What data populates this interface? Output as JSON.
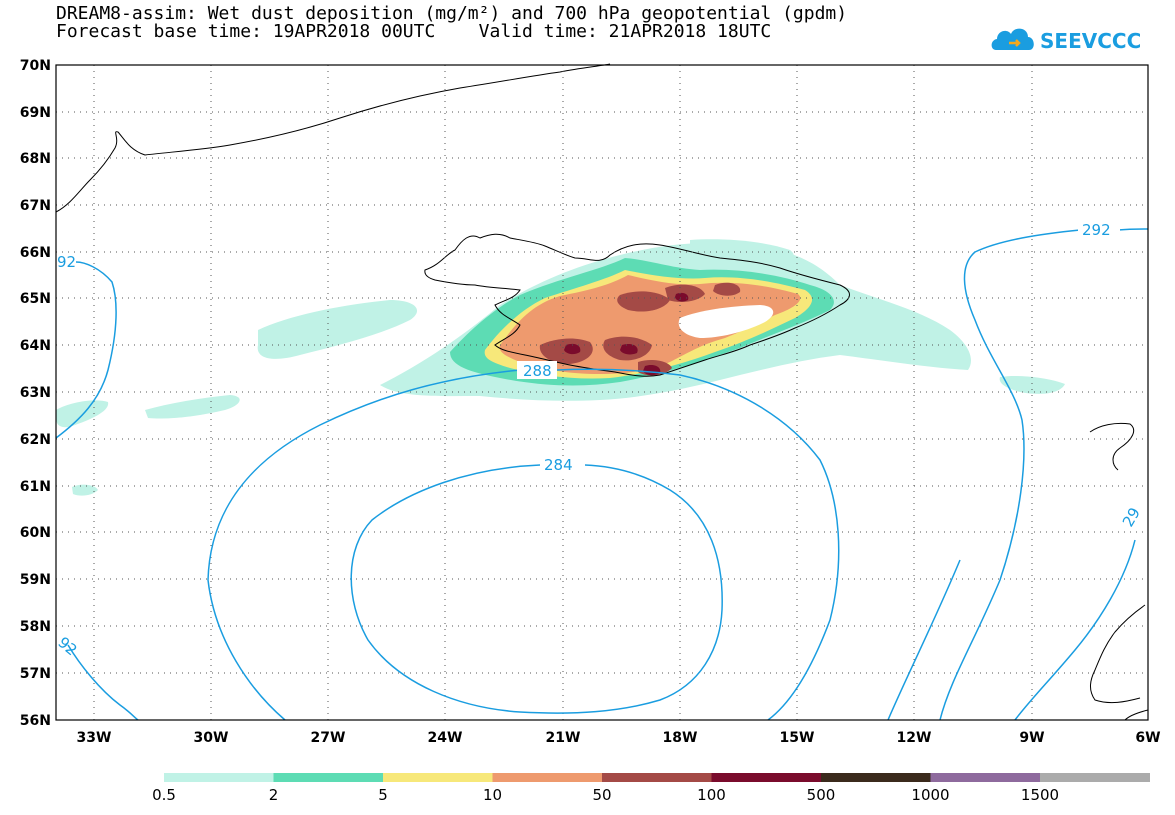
{
  "title_line1": "DREAM8-assim: Wet dust deposition (mg/m²) and 700 hPa geopotential (gpdm)",
  "title_line2": "Forecast base time: 19APR2018 00UTC    Valid time: 21APR2018 18UTC",
  "logo_text": "SEEVCCC",
  "latitudes": [
    "70N",
    "69N",
    "68N",
    "67N",
    "66N",
    "65N",
    "64N",
    "63N",
    "62N",
    "61N",
    "60N",
    "59N",
    "58N",
    "57N",
    "56N"
  ],
  "longitudes": [
    "33W",
    "30W",
    "27W",
    "24W",
    "21W",
    "18W",
    "15W",
    "12W",
    "9W",
    "6W"
  ],
  "contour_labels": {
    "c292_right": "292",
    "c292_left_top": "92",
    "c292_left_bottom": "92",
    "c288": "288",
    "c284": "284",
    "c29_right": "29"
  },
  "colorbar": {
    "labels": [
      "0.5",
      "2",
      "5",
      "10",
      "50",
      "100",
      "500",
      "1000",
      "1500"
    ],
    "colors": [
      "#c0f2e6",
      "#5ddcb4",
      "#f7e87a",
      "#ee9a6e",
      "#a44a46",
      "#7a0b2c",
      "#3b2a1c",
      "#8e6a9d",
      "#ababab"
    ]
  },
  "colors": {
    "contour": "#1a9de0",
    "coast": "#000000",
    "dust_light": "#c0f2e6",
    "dust_green": "#5ddcb4",
    "dust_yellow": "#f7e87a",
    "dust_orange": "#ee9a6e",
    "dust_brown": "#a44a46",
    "dust_dark": "#7a0b2c"
  }
}
